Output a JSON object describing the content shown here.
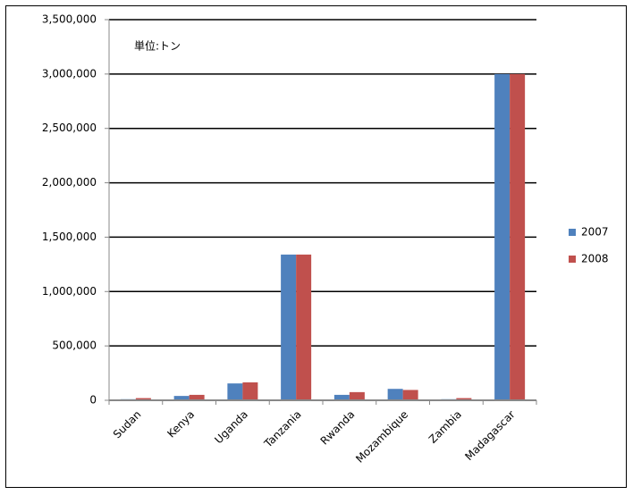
{
  "chart_data": {
    "type": "bar",
    "annotation": "単位:トン",
    "categories": [
      "Sudan",
      "Kenya",
      "Uganda",
      "Tanzania",
      "Rwanda",
      "Mozambique",
      "Zambia",
      "Madagascar"
    ],
    "series": [
      {
        "name": "2007",
        "color": "#4f81bd",
        "values": [
          10000,
          40000,
          155000,
          1340000,
          50000,
          105000,
          10000,
          3000000
        ]
      },
      {
        "name": "2008",
        "color": "#c0504d",
        "values": [
          20000,
          50000,
          165000,
          1340000,
          75000,
          95000,
          20000,
          3000000
        ]
      }
    ],
    "ylim": [
      0,
      3500000
    ],
    "yticks": [
      0,
      {
        "value": 500000,
        "label": "500,000"
      },
      {
        "value": 1000000,
        "label": "1,000,000"
      },
      {
        "value": 1500000,
        "label": "1,500,000"
      },
      {
        "value": 2000000,
        "label": "2,000,000"
      },
      {
        "value": 2500000,
        "label": "2,500,000"
      },
      {
        "value": 3000000,
        "label": "3,000,000"
      },
      {
        "value": 3500000,
        "label": "3,500,000"
      }
    ],
    "grid": true,
    "legend": "right"
  }
}
